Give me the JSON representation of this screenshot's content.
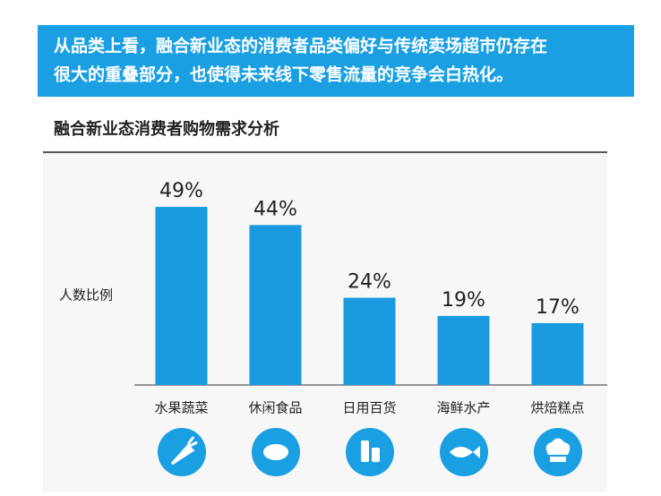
{
  "banner": {
    "lines": [
      "从品类上看，融合新业态的消费者品类偏好与传统卖场超市仍存在",
      "很大的重叠部分，也使得未来线下零售流量的竞争会白热化。"
    ]
  },
  "chart_data": {
    "type": "bar",
    "title": "融合新业态消费者购物需求分析",
    "y_label": "人数比例",
    "categories": [
      "水果蔬菜",
      "休闲食品",
      "日用百货",
      "海鲜水产",
      "烘焙糕点"
    ],
    "values": [
      49,
      44,
      24,
      19,
      17
    ],
    "value_labels": [
      "49%",
      "44%",
      "24%",
      "19%",
      "17%"
    ],
    "color": "#1a9be0"
  }
}
